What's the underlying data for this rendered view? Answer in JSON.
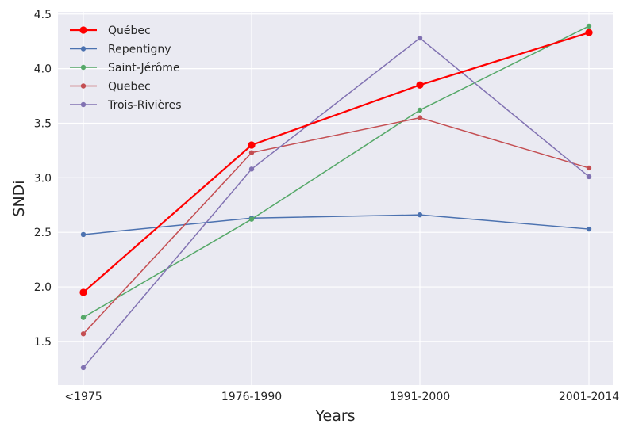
{
  "chart_data": {
    "type": "line",
    "title": "",
    "xlabel": "Years",
    "ylabel": "SNDi",
    "categories": [
      "<1975",
      "1976-1990",
      "1991-2000",
      "2001-2014"
    ],
    "ylim": [
      1.1,
      4.52
    ],
    "yticks": [
      1.5,
      2.0,
      2.5,
      3.0,
      3.5,
      4.0,
      4.5
    ],
    "ytick_labels": [
      "1.5",
      "2.0",
      "2.5",
      "3.0",
      "3.5",
      "4.0",
      "4.5"
    ],
    "grid": true,
    "legend_position": "top-left",
    "background_color": "#eaeaf2",
    "series": [
      {
        "name": "Québec",
        "color": "#ff0000",
        "emphasis": true,
        "values": [
          1.95,
          3.3,
          3.85,
          4.33
        ]
      },
      {
        "name": "Repentigny",
        "color": "#4c72b0",
        "emphasis": false,
        "values": [
          2.48,
          2.63,
          2.66,
          2.53
        ]
      },
      {
        "name": "Saint-Jérôme",
        "color": "#55a868",
        "emphasis": false,
        "values": [
          1.72,
          2.62,
          3.62,
          4.39
        ]
      },
      {
        "name": "Quebec",
        "color": "#c44e52",
        "emphasis": false,
        "values": [
          1.57,
          3.23,
          3.55,
          3.09
        ]
      },
      {
        "name": "Trois-Rivières",
        "color": "#8172b2",
        "emphasis": false,
        "values": [
          1.26,
          3.08,
          4.28,
          3.01
        ]
      }
    ]
  }
}
